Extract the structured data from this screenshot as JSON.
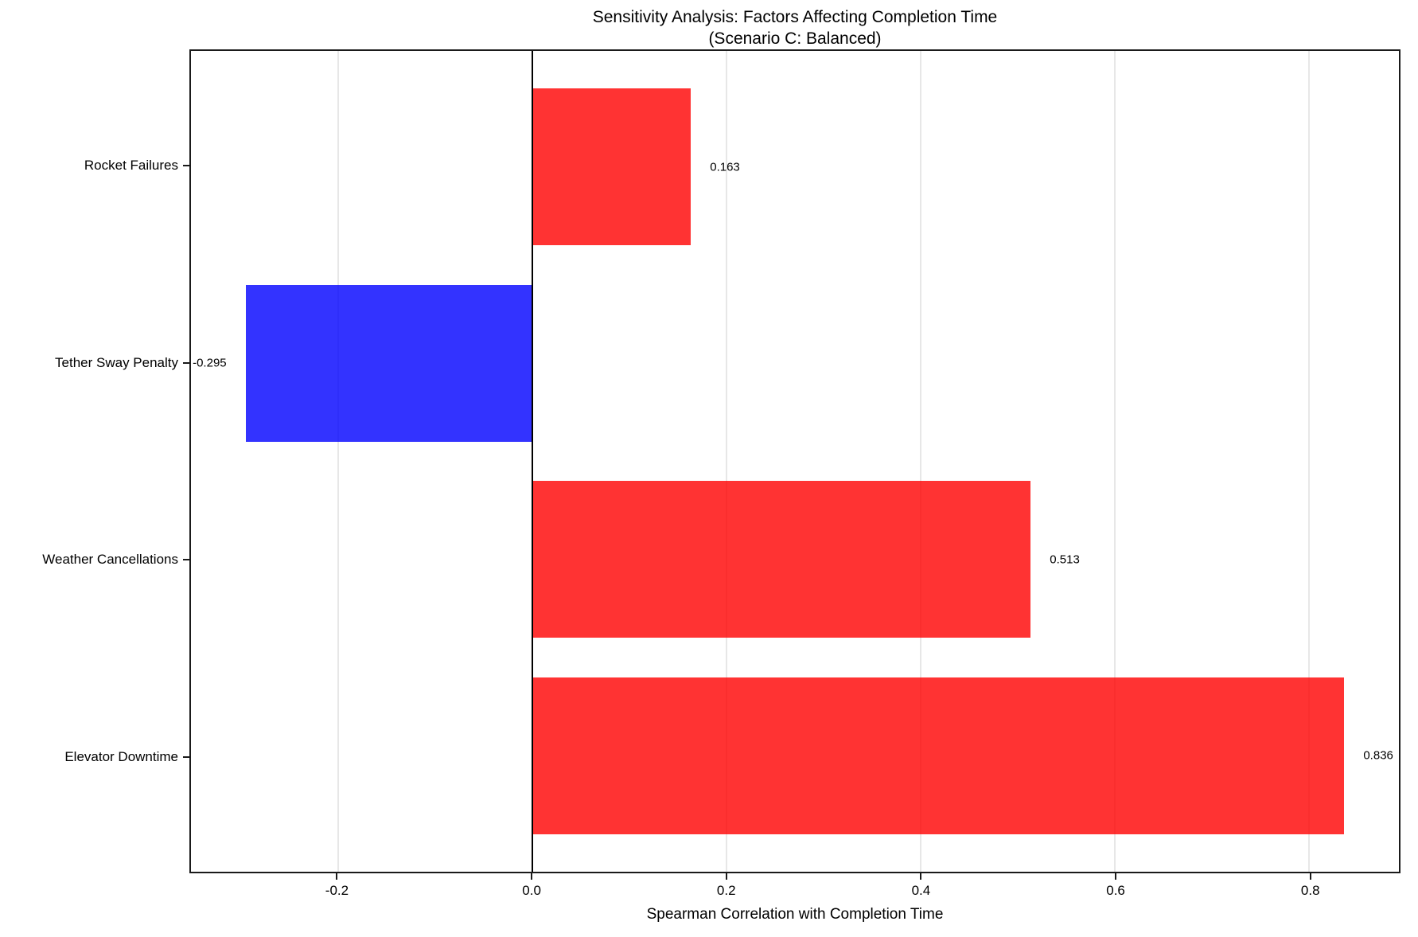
{
  "chart_data": {
    "type": "bar",
    "orientation": "horizontal",
    "title": "Sensitivity Analysis: Factors Affecting Completion Time",
    "subtitle": "(Scenario C: Balanced)",
    "xlabel": "Spearman Correlation with Completion Time",
    "ylabel": "",
    "categories": [
      "Rocket Failures",
      "Tether Sway Penalty",
      "Weather Cancellations",
      "Elevator Downtime"
    ],
    "values": [
      0.163,
      -0.295,
      0.513,
      0.836
    ],
    "value_labels": [
      "0.163",
      "-0.295",
      "0.513",
      "0.836"
    ],
    "bar_colors": [
      "#ff0000",
      "#0000ff",
      "#ff0000",
      "#ff0000"
    ],
    "bar_alpha": 0.8,
    "bar_height": 0.8,
    "xlim": [
      -0.3516,
      0.8926
    ],
    "xticks": [
      -0.2,
      0.0,
      0.2,
      0.4,
      0.6,
      0.8
    ],
    "xtick_labels": [
      "-0.2",
      "0.0",
      "0.2",
      "0.4",
      "0.6",
      "0.8"
    ],
    "grid": true,
    "zero_line": true,
    "legend": false,
    "colors": {
      "grid": "#e7e7e7",
      "spine": "#1a1a1a",
      "zero_line": "#000000",
      "text": "#000000",
      "background": "#ffffff"
    }
  }
}
